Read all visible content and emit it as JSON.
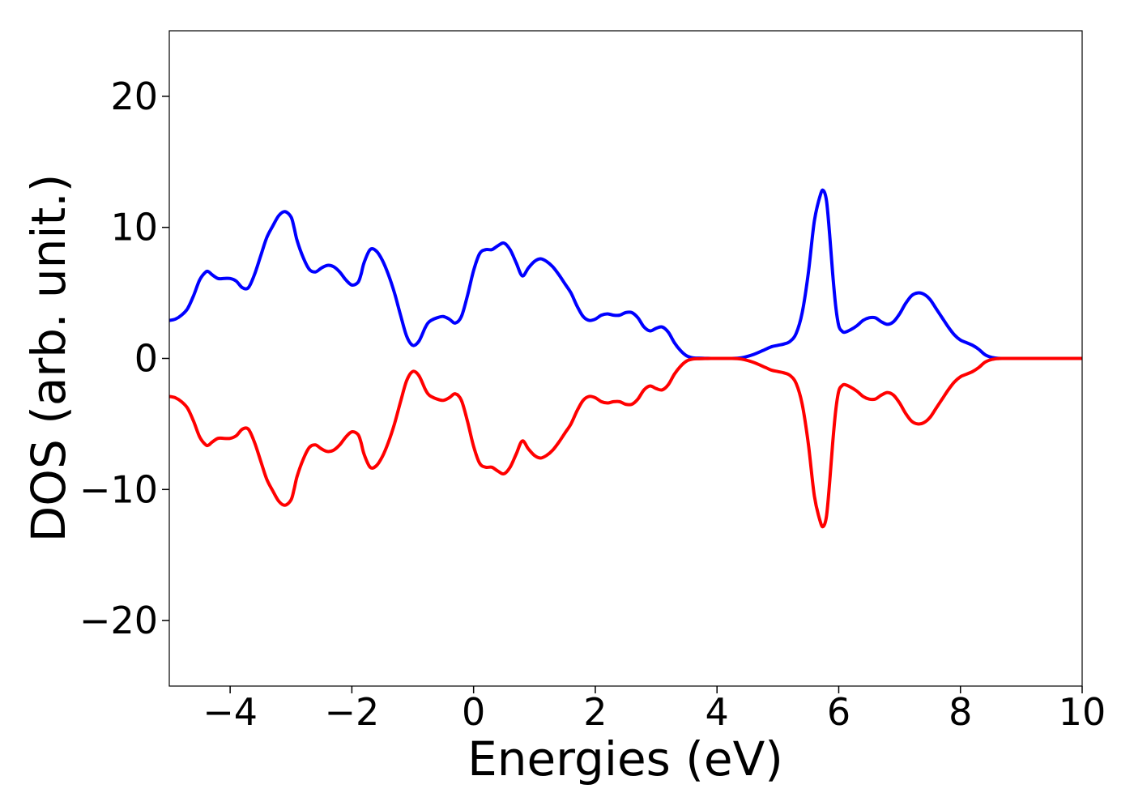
{
  "chart_data": {
    "type": "line",
    "title": "",
    "xlabel": "Energies (eV)",
    "ylabel": "DOS (arb. unit.)",
    "xlim": [
      -5,
      10
    ],
    "ylim": [
      -25,
      25
    ],
    "xticks": [
      -4,
      -2,
      0,
      2,
      4,
      6,
      8,
      10
    ],
    "xtick_labels": [
      "−4",
      "−2",
      "0",
      "2",
      "4",
      "6",
      "8",
      "10"
    ],
    "yticks": [
      -20,
      -10,
      0,
      10,
      20
    ],
    "ytick_labels": [
      "−20",
      "−10",
      "0",
      "10",
      "20"
    ],
    "grid": false,
    "legend": "none",
    "series": [
      {
        "color": "#0000ff",
        "x": [
          -5.0,
          -4.9,
          -4.8,
          -4.7,
          -4.6,
          -4.5,
          -4.4,
          -4.35,
          -4.3,
          -4.2,
          -4.1,
          -4.0,
          -3.9,
          -3.8,
          -3.7,
          -3.6,
          -3.5,
          -3.4,
          -3.3,
          -3.2,
          -3.1,
          -3.0,
          -2.95,
          -2.9,
          -2.8,
          -2.7,
          -2.6,
          -2.5,
          -2.4,
          -2.3,
          -2.2,
          -2.1,
          -2.0,
          -1.9,
          -1.85,
          -1.8,
          -1.7,
          -1.6,
          -1.5,
          -1.4,
          -1.3,
          -1.2,
          -1.1,
          -1.0,
          -0.9,
          -0.8,
          -0.75,
          -0.7,
          -0.6,
          -0.5,
          -0.4,
          -0.3,
          -0.2,
          -0.1,
          0.0,
          0.1,
          0.2,
          0.3,
          0.4,
          0.5,
          0.6,
          0.7,
          0.8,
          0.9,
          1.0,
          1.1,
          1.2,
          1.3,
          1.4,
          1.5,
          1.6,
          1.7,
          1.8,
          1.9,
          2.0,
          2.1,
          2.2,
          2.3,
          2.4,
          2.5,
          2.6,
          2.7,
          2.8,
          2.9,
          3.0,
          3.1,
          3.2,
          3.3,
          3.4,
          3.5,
          3.6,
          3.7,
          3.8,
          3.9,
          4.0,
          4.2,
          4.4,
          4.6,
          4.8,
          4.9,
          5.0,
          5.1,
          5.2,
          5.3,
          5.4,
          5.5,
          5.6,
          5.7,
          5.75,
          5.8,
          5.85,
          5.9,
          5.95,
          6.0,
          6.05,
          6.1,
          6.2,
          6.3,
          6.4,
          6.5,
          6.6,
          6.7,
          6.8,
          6.9,
          7.0,
          7.1,
          7.2,
          7.3,
          7.4,
          7.5,
          7.6,
          7.7,
          7.8,
          7.9,
          8.0,
          8.1,
          8.2,
          8.3,
          8.4,
          8.5,
          8.6,
          8.7,
          8.8,
          9.0,
          9.5,
          10.0
        ],
        "values": [
          2.9,
          3.0,
          3.3,
          3.8,
          4.8,
          6.0,
          6.6,
          6.6,
          6.4,
          6.1,
          6.1,
          6.1,
          5.9,
          5.4,
          5.4,
          6.4,
          7.8,
          9.2,
          10.1,
          10.9,
          11.2,
          10.8,
          10.0,
          9.0,
          7.7,
          6.8,
          6.6,
          6.9,
          7.1,
          7.0,
          6.6,
          6.0,
          5.6,
          5.8,
          6.4,
          7.3,
          8.3,
          8.2,
          7.5,
          6.4,
          5.0,
          3.3,
          1.7,
          1.0,
          1.3,
          2.3,
          2.7,
          2.9,
          3.1,
          3.2,
          3.0,
          2.7,
          3.2,
          4.8,
          6.7,
          8.0,
          8.3,
          8.3,
          8.6,
          8.8,
          8.3,
          7.3,
          6.3,
          6.9,
          7.4,
          7.6,
          7.4,
          7.0,
          6.4,
          5.7,
          5.0,
          4.0,
          3.2,
          2.9,
          3.0,
          3.3,
          3.4,
          3.3,
          3.3,
          3.5,
          3.5,
          3.1,
          2.4,
          2.1,
          2.3,
          2.4,
          2.0,
          1.2,
          0.6,
          0.2,
          0.05,
          0.02,
          0.01,
          0.0,
          0.0,
          0.0,
          0.05,
          0.3,
          0.7,
          0.9,
          1.0,
          1.1,
          1.3,
          1.9,
          3.5,
          6.5,
          10.5,
          12.5,
          12.8,
          12.0,
          9.5,
          6.5,
          4.0,
          2.5,
          2.1,
          2.0,
          2.2,
          2.5,
          2.9,
          3.1,
          3.1,
          2.8,
          2.6,
          2.8,
          3.4,
          4.2,
          4.8,
          5.0,
          4.9,
          4.5,
          3.8,
          3.1,
          2.4,
          1.8,
          1.4,
          1.2,
          1.0,
          0.7,
          0.3,
          0.1,
          0.02,
          0.0,
          0.0,
          0.0,
          0.0,
          0.0
        ]
      },
      {
        "color": "#ff0000",
        "x": [
          -5.0,
          -4.9,
          -4.8,
          -4.7,
          -4.6,
          -4.5,
          -4.4,
          -4.35,
          -4.3,
          -4.2,
          -4.1,
          -4.0,
          -3.9,
          -3.8,
          -3.7,
          -3.6,
          -3.5,
          -3.4,
          -3.3,
          -3.2,
          -3.1,
          -3.0,
          -2.95,
          -2.9,
          -2.8,
          -2.7,
          -2.6,
          -2.5,
          -2.4,
          -2.3,
          -2.2,
          -2.1,
          -2.0,
          -1.9,
          -1.85,
          -1.8,
          -1.7,
          -1.6,
          -1.5,
          -1.4,
          -1.3,
          -1.2,
          -1.1,
          -1.0,
          -0.9,
          -0.8,
          -0.75,
          -0.7,
          -0.6,
          -0.5,
          -0.4,
          -0.3,
          -0.2,
          -0.1,
          0.0,
          0.1,
          0.2,
          0.3,
          0.4,
          0.5,
          0.6,
          0.7,
          0.8,
          0.9,
          1.0,
          1.1,
          1.2,
          1.3,
          1.4,
          1.5,
          1.6,
          1.7,
          1.8,
          1.9,
          2.0,
          2.1,
          2.2,
          2.3,
          2.4,
          2.5,
          2.6,
          2.7,
          2.8,
          2.9,
          3.0,
          3.1,
          3.2,
          3.3,
          3.4,
          3.5,
          3.6,
          3.7,
          3.8,
          3.9,
          4.0,
          4.2,
          4.4,
          4.6,
          4.8,
          4.9,
          5.0,
          5.1,
          5.2,
          5.3,
          5.4,
          5.5,
          5.6,
          5.7,
          5.75,
          5.8,
          5.85,
          5.9,
          5.95,
          6.0,
          6.05,
          6.1,
          6.2,
          6.3,
          6.4,
          6.5,
          6.6,
          6.7,
          6.8,
          6.9,
          7.0,
          7.1,
          7.2,
          7.3,
          7.4,
          7.5,
          7.6,
          7.7,
          7.8,
          7.9,
          8.0,
          8.1,
          8.2,
          8.3,
          8.4,
          8.5,
          8.6,
          8.7,
          8.8,
          9.0,
          9.5,
          10.0
        ],
        "values": [
          -2.9,
          -3.0,
          -3.3,
          -3.8,
          -4.8,
          -6.0,
          -6.6,
          -6.6,
          -6.4,
          -6.1,
          -6.1,
          -6.1,
          -5.9,
          -5.4,
          -5.4,
          -6.4,
          -7.8,
          -9.2,
          -10.1,
          -10.9,
          -11.2,
          -10.8,
          -10.0,
          -9.0,
          -7.7,
          -6.8,
          -6.6,
          -6.9,
          -7.1,
          -7.0,
          -6.6,
          -6.0,
          -5.6,
          -5.8,
          -6.4,
          -7.3,
          -8.3,
          -8.2,
          -7.5,
          -6.4,
          -5.0,
          -3.3,
          -1.7,
          -1.0,
          -1.3,
          -2.3,
          -2.7,
          -2.9,
          -3.1,
          -3.2,
          -3.0,
          -2.7,
          -3.2,
          -4.8,
          -6.7,
          -8.0,
          -8.3,
          -8.3,
          -8.6,
          -8.8,
          -8.3,
          -7.3,
          -6.3,
          -6.9,
          -7.4,
          -7.6,
          -7.4,
          -7.0,
          -6.4,
          -5.7,
          -5.0,
          -4.0,
          -3.2,
          -2.9,
          -3.0,
          -3.3,
          -3.4,
          -3.3,
          -3.3,
          -3.5,
          -3.5,
          -3.1,
          -2.4,
          -2.1,
          -2.3,
          -2.4,
          -2.0,
          -1.2,
          -0.6,
          -0.2,
          -0.05,
          -0.02,
          -0.01,
          0.0,
          0.0,
          0.0,
          -0.05,
          -0.3,
          -0.7,
          -0.9,
          -1.0,
          -1.1,
          -1.3,
          -1.9,
          -3.5,
          -6.5,
          -10.5,
          -12.5,
          -12.8,
          -12.0,
          -9.5,
          -6.5,
          -4.0,
          -2.5,
          -2.1,
          -2.0,
          -2.2,
          -2.5,
          -2.9,
          -3.1,
          -3.1,
          -2.8,
          -2.6,
          -2.8,
          -3.4,
          -4.2,
          -4.8,
          -5.0,
          -4.9,
          -4.5,
          -3.8,
          -3.1,
          -2.4,
          -1.8,
          -1.4,
          -1.2,
          -1.0,
          -0.7,
          -0.3,
          -0.1,
          -0.02,
          0.0,
          0.0,
          0.0,
          0.0,
          0.0
        ]
      }
    ]
  }
}
